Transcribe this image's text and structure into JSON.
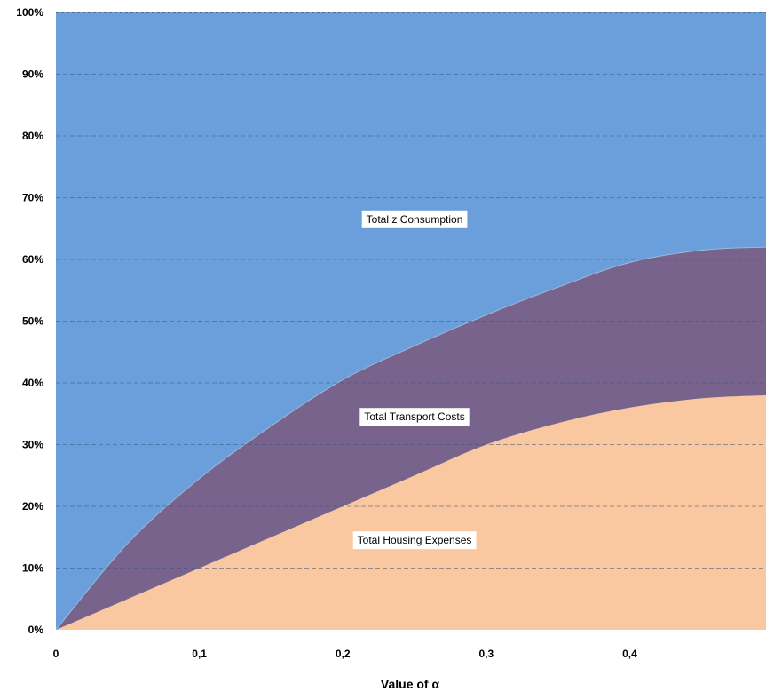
{
  "chart_data": {
    "type": "area",
    "stacked": "percent",
    "xlabel": "Value of α",
    "ylabel": "",
    "xlim": [
      0,
      0.495
    ],
    "ylim": [
      0,
      100
    ],
    "y_ticks": [
      "0%",
      "10%",
      "20%",
      "30%",
      "40%",
      "50%",
      "60%",
      "70%",
      "80%",
      "90%",
      "100%"
    ],
    "x_tick_values": [
      0,
      0.1,
      0.2,
      0.3,
      0.4
    ],
    "x_tick_labels": [
      "0",
      "0,1",
      "0,2",
      "0,3",
      "0,4"
    ],
    "grid": "horizontal-dashed",
    "legend": "none",
    "x": [
      0,
      0.05,
      0.1,
      0.15,
      0.2,
      0.25,
      0.3,
      0.35,
      0.4,
      0.45,
      0.495
    ],
    "series": [
      {
        "name": "Total Housing Expenses",
        "color": "#fac8a0",
        "values": [
          0,
          5,
          10,
          15,
          20,
          25,
          30,
          33.5,
          36,
          37.5,
          38
        ]
      },
      {
        "name": "Total Transport Costs",
        "color": "#77638b",
        "values": [
          0,
          9,
          14.5,
          18,
          20.5,
          21,
          21,
          22,
          23.5,
          24,
          24
        ]
      },
      {
        "name": "Total z Consumption",
        "color": "#6a9fdb",
        "values": [
          100,
          86,
          75.5,
          67,
          59.5,
          54,
          49,
          44.5,
          40.5,
          38.5,
          38
        ]
      }
    ],
    "annotations": [
      {
        "text": "Total z Consumption",
        "x": 0.25,
        "y": 66.5
      },
      {
        "text": "Total Transport Costs",
        "x": 0.25,
        "y": 34.5
      },
      {
        "text": "Total Housing Expenses",
        "x": 0.25,
        "y": 14.5
      }
    ]
  }
}
